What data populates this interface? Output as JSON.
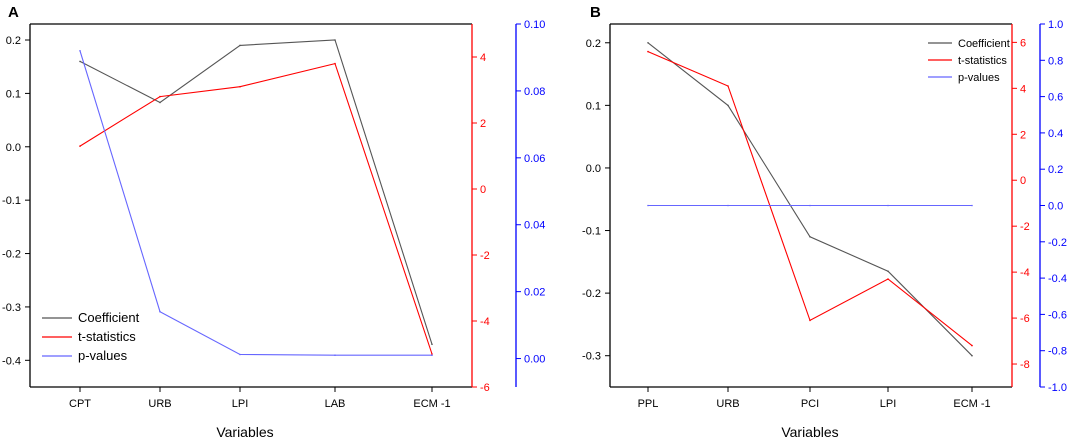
{
  "figure": {
    "panels": [
      {
        "label": "A",
        "xlabel": "Variables",
        "categories": [
          "CPT",
          "URB",
          "LPI",
          "LAB",
          "ECM -1"
        ],
        "left_axis": {
          "color": "#333333",
          "ylim": [
            -0.45,
            0.23
          ],
          "ticks": [
            0.2,
            0.1,
            0.0,
            -0.1,
            -0.2,
            -0.3,
            -0.4
          ],
          "tick_labels": [
            "0.2",
            "0.1",
            "0.0",
            "-0.1",
            "-0.2",
            "-0.3",
            "-0.4"
          ]
        },
        "right_axis1": {
          "color": "#ff0000",
          "ylim": [
            -6,
            5
          ],
          "ticks": [
            4,
            2,
            0,
            -2,
            -4,
            -6
          ],
          "tick_labels": [
            "4",
            "2",
            "0",
            "-2",
            "-4",
            "-6"
          ]
        },
        "right_axis2": {
          "color": "#0000ff",
          "ylim": [
            -0.0085,
            0.1
          ],
          "ticks": [
            0.1,
            0.08,
            0.06,
            0.04,
            0.02,
            0.0
          ],
          "tick_labels": [
            "0.10",
            "0.08",
            "0.06",
            "0.04",
            "0.02",
            "0.00"
          ]
        },
        "legend": {
          "position": "bottom-left",
          "entries": [
            "Coefficient",
            "t-statistics",
            "p-values"
          ]
        }
      },
      {
        "label": "B",
        "xlabel": "Variables",
        "categories": [
          "PPL",
          "URB",
          "PCI",
          "LPI",
          "ECM -1"
        ],
        "left_axis": {
          "color": "#333333",
          "ylim": [
            -0.35,
            0.23
          ],
          "ticks": [
            0.2,
            0.1,
            0.0,
            -0.1,
            -0.2,
            -0.3
          ],
          "tick_labels": [
            "0.2",
            "0.1",
            "0.0",
            "-0.1",
            "-0.2",
            "-0.3"
          ]
        },
        "right_axis1": {
          "color": "#ff0000",
          "ylim": [
            -9,
            6.8
          ],
          "ticks": [
            6,
            4,
            2,
            0,
            -2,
            -4,
            -6,
            -8
          ],
          "tick_labels": [
            "6",
            "4",
            "2",
            "0",
            "-2",
            "-4",
            "-6",
            "-8"
          ]
        },
        "right_axis2": {
          "color": "#0000ff",
          "ylim": [
            -1.0,
            1.0
          ],
          "ticks": [
            1.0,
            0.8,
            0.6,
            0.4,
            0.2,
            0.0,
            -0.2,
            -0.4,
            -0.6,
            -0.8,
            -1.0
          ],
          "tick_labels": [
            "1.0",
            "0.8",
            "0.6",
            "0.4",
            "0.2",
            "0.0",
            "-0.2",
            "-0.4",
            "-0.6",
            "-0.8",
            "-1.0"
          ]
        },
        "legend": {
          "position": "top-right",
          "entries": [
            "Coefficient",
            "t-statistics",
            "p-values"
          ]
        }
      }
    ]
  },
  "chart_data": [
    {
      "type": "line",
      "categories": [
        "CPT",
        "URB",
        "LPI",
        "LAB",
        "ECM -1"
      ],
      "title": "",
      "xlabel": "Variables",
      "ylabel": "",
      "grid": false,
      "legend": "bottom-left",
      "series": [
        {
          "name": "Coefficient",
          "axis": "left",
          "color": "#555555",
          "values": [
            0.16,
            0.083,
            0.19,
            0.2,
            -0.37
          ]
        },
        {
          "name": "t-statistics",
          "axis": "right1",
          "color": "#ff0000",
          "values": [
            1.3,
            2.8,
            3.1,
            3.8,
            -5.0
          ]
        },
        {
          "name": "p-values",
          "axis": "right2",
          "color": "#6666ff",
          "values": [
            0.092,
            0.014,
            0.0012,
            0.001,
            0.001
          ]
        }
      ]
    },
    {
      "type": "line",
      "categories": [
        "PPL",
        "URB",
        "PCI",
        "LPI",
        "ECM -1"
      ],
      "title": "",
      "xlabel": "Variables",
      "ylabel": "",
      "grid": false,
      "legend": "top-right",
      "series": [
        {
          "name": "Coefficient",
          "axis": "left",
          "color": "#555555",
          "values": [
            0.2,
            0.1,
            -0.11,
            -0.165,
            -0.3
          ]
        },
        {
          "name": "t-statistics",
          "axis": "right1",
          "color": "#ff0000",
          "values": [
            5.6,
            4.1,
            -6.1,
            -4.3,
            -7.2
          ]
        },
        {
          "name": "p-values",
          "axis": "right2",
          "color": "#6666ff",
          "values": [
            0.0,
            0.0,
            0.0,
            0.0,
            0.0
          ]
        }
      ]
    }
  ]
}
